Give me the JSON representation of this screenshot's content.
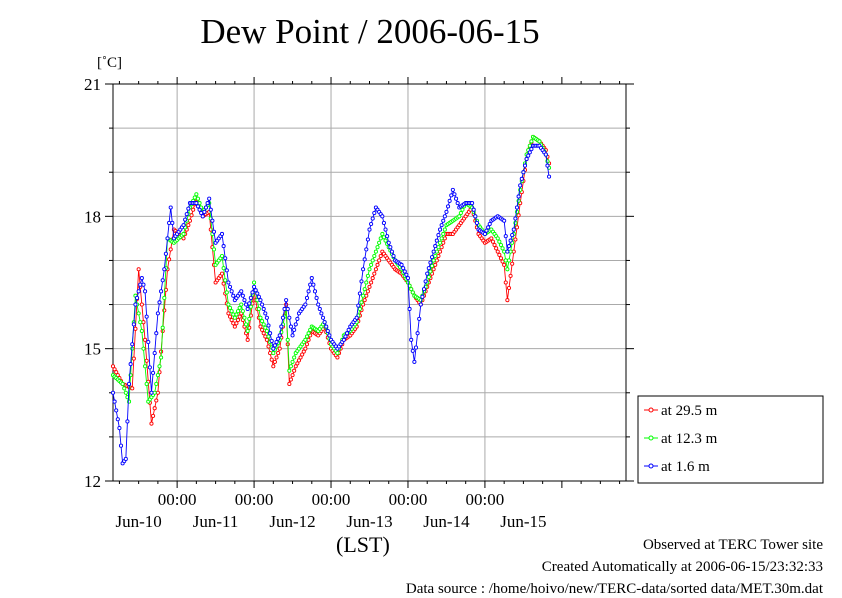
{
  "chart_data": {
    "type": "line",
    "title": "Dew Point / 2006-06-15",
    "ylabel": "[˚C]",
    "xlabel": "(LST)",
    "ylim": [
      12,
      21
    ],
    "yticks": [
      12,
      15,
      18,
      21
    ],
    "time_labels": [
      "00:00",
      "00:00",
      "00:00",
      "00:00",
      "00:00"
    ],
    "day_labels": [
      "Jun-10",
      "Jun-11",
      "Jun-12",
      "Jun-13",
      "Jun-14",
      "Jun-15"
    ],
    "x_range_hours_from_jun10": [
      -20,
      140
    ],
    "grid": true,
    "legend_position": "bottom-right",
    "series": [
      {
        "name": "at 29.5 m",
        "color": "#ff0000",
        "points": [
          [
            -20,
            14.6
          ],
          [
            -17,
            14.2
          ],
          [
            -14,
            14.1
          ],
          [
            -12,
            16.8
          ],
          [
            -10,
            15.2
          ],
          [
            -8,
            13.3
          ],
          [
            -6,
            14.0
          ],
          [
            -3,
            16.8
          ],
          [
            -1,
            17.7
          ],
          [
            2,
            17.5
          ],
          [
            4,
            17.9
          ],
          [
            6,
            18.4
          ],
          [
            8,
            18.0
          ],
          [
            10,
            18.1
          ],
          [
            12,
            16.5
          ],
          [
            14,
            16.7
          ],
          [
            16,
            15.8
          ],
          [
            18,
            15.5
          ],
          [
            20,
            15.8
          ],
          [
            22,
            15.2
          ],
          [
            24,
            16.3
          ],
          [
            26,
            15.5
          ],
          [
            28,
            15.2
          ],
          [
            30,
            14.6
          ],
          [
            32,
            15.0
          ],
          [
            34,
            16.0
          ],
          [
            35,
            14.2
          ],
          [
            37,
            14.6
          ],
          [
            40,
            15.0
          ],
          [
            42,
            15.4
          ],
          [
            44,
            15.3
          ],
          [
            46,
            15.5
          ],
          [
            48,
            15.0
          ],
          [
            50,
            14.8
          ],
          [
            52,
            15.2
          ],
          [
            54,
            15.3
          ],
          [
            56,
            15.5
          ],
          [
            58,
            16.0
          ],
          [
            60,
            16.4
          ],
          [
            62,
            16.8
          ],
          [
            64,
            17.2
          ],
          [
            66,
            17.0
          ],
          [
            68,
            16.8
          ],
          [
            70,
            16.7
          ],
          [
            72,
            16.5
          ],
          [
            74,
            16.2
          ],
          [
            76,
            16.0
          ],
          [
            78,
            16.4
          ],
          [
            80,
            16.8
          ],
          [
            82,
            17.2
          ],
          [
            84,
            17.6
          ],
          [
            86,
            17.6
          ],
          [
            88,
            17.8
          ],
          [
            90,
            18.0
          ],
          [
            92,
            18.2
          ],
          [
            94,
            17.6
          ],
          [
            96,
            17.4
          ],
          [
            98,
            17.5
          ],
          [
            100,
            17.2
          ],
          [
            102,
            16.9
          ],
          [
            103,
            16.1
          ],
          [
            105,
            17.2
          ],
          [
            107,
            18.3
          ],
          [
            109,
            19.3
          ],
          [
            111,
            19.8
          ],
          [
            113,
            19.7
          ],
          [
            115,
            19.5
          ],
          [
            116,
            19.2
          ]
        ]
      },
      {
        "name": "at 12.3 m",
        "color": "#00ff00",
        "points": [
          [
            -20,
            14.4
          ],
          [
            -17,
            14.2
          ],
          [
            -15,
            13.8
          ],
          [
            -13,
            16.2
          ],
          [
            -11,
            15.4
          ],
          [
            -9,
            13.8
          ],
          [
            -7,
            14.0
          ],
          [
            -5,
            14.8
          ],
          [
            -3,
            17.5
          ],
          [
            -1,
            17.4
          ],
          [
            2,
            17.6
          ],
          [
            4,
            18.2
          ],
          [
            6,
            18.5
          ],
          [
            8,
            18.1
          ],
          [
            10,
            18.3
          ],
          [
            12,
            16.9
          ],
          [
            14,
            17.1
          ],
          [
            16,
            16.0
          ],
          [
            18,
            15.7
          ],
          [
            20,
            16.0
          ],
          [
            22,
            15.4
          ],
          [
            24,
            16.5
          ],
          [
            26,
            15.7
          ],
          [
            28,
            15.4
          ],
          [
            30,
            14.9
          ],
          [
            32,
            15.2
          ],
          [
            34,
            15.9
          ],
          [
            35,
            14.5
          ],
          [
            37,
            14.9
          ],
          [
            40,
            15.2
          ],
          [
            42,
            15.5
          ],
          [
            44,
            15.4
          ],
          [
            46,
            15.6
          ],
          [
            48,
            15.1
          ],
          [
            50,
            14.9
          ],
          [
            52,
            15.3
          ],
          [
            54,
            15.4
          ],
          [
            56,
            15.6
          ],
          [
            58,
            16.2
          ],
          [
            60,
            16.8
          ],
          [
            62,
            17.2
          ],
          [
            64,
            17.6
          ],
          [
            66,
            17.3
          ],
          [
            68,
            17.0
          ],
          [
            70,
            16.8
          ],
          [
            72,
            16.5
          ],
          [
            74,
            16.2
          ],
          [
            76,
            16.1
          ],
          [
            78,
            16.5
          ],
          [
            80,
            17.0
          ],
          [
            82,
            17.4
          ],
          [
            84,
            17.8
          ],
          [
            86,
            17.9
          ],
          [
            88,
            18.0
          ],
          [
            90,
            18.3
          ],
          [
            92,
            18.2
          ],
          [
            94,
            17.8
          ],
          [
            96,
            17.6
          ],
          [
            98,
            17.7
          ],
          [
            100,
            17.5
          ],
          [
            102,
            17.2
          ],
          [
            103,
            16.8
          ],
          [
            105,
            17.6
          ],
          [
            107,
            18.6
          ],
          [
            109,
            19.4
          ],
          [
            111,
            19.8
          ],
          [
            113,
            19.7
          ],
          [
            115,
            19.4
          ],
          [
            116,
            19.1
          ]
        ]
      },
      {
        "name": "at 1.6 m",
        "color": "#0000ff",
        "points": [
          [
            -20,
            14.0
          ],
          [
            -18,
            13.2
          ],
          [
            -17,
            12.4
          ],
          [
            -16,
            12.5
          ],
          [
            -15,
            14.2
          ],
          [
            -13,
            16.0
          ],
          [
            -11,
            16.6
          ],
          [
            -10,
            16.3
          ],
          [
            -8,
            14.0
          ],
          [
            -6,
            15.8
          ],
          [
            -4,
            16.8
          ],
          [
            -3,
            17.5
          ],
          [
            -2,
            18.2
          ],
          [
            -1,
            17.5
          ],
          [
            2,
            17.8
          ],
          [
            4,
            18.3
          ],
          [
            6,
            18.3
          ],
          [
            8,
            18.0
          ],
          [
            10,
            18.4
          ],
          [
            12,
            17.4
          ],
          [
            14,
            17.6
          ],
          [
            16,
            16.5
          ],
          [
            18,
            16.1
          ],
          [
            20,
            16.3
          ],
          [
            22,
            15.9
          ],
          [
            24,
            16.4
          ],
          [
            26,
            16.1
          ],
          [
            28,
            15.7
          ],
          [
            30,
            15.0
          ],
          [
            32,
            15.3
          ],
          [
            34,
            16.1
          ],
          [
            36,
            15.3
          ],
          [
            38,
            15.8
          ],
          [
            40,
            16.0
          ],
          [
            42,
            16.6
          ],
          [
            44,
            16.0
          ],
          [
            46,
            15.6
          ],
          [
            48,
            15.2
          ],
          [
            50,
            15.0
          ],
          [
            52,
            15.2
          ],
          [
            54,
            15.5
          ],
          [
            56,
            15.7
          ],
          [
            58,
            16.8
          ],
          [
            60,
            17.7
          ],
          [
            62,
            18.2
          ],
          [
            64,
            18.0
          ],
          [
            66,
            17.4
          ],
          [
            68,
            17.0
          ],
          [
            70,
            16.9
          ],
          [
            72,
            16.6
          ],
          [
            73,
            15.2
          ],
          [
            74,
            14.7
          ],
          [
            76,
            16.0
          ],
          [
            78,
            16.7
          ],
          [
            80,
            17.2
          ],
          [
            82,
            17.7
          ],
          [
            84,
            18.1
          ],
          [
            86,
            18.6
          ],
          [
            88,
            18.2
          ],
          [
            90,
            18.3
          ],
          [
            92,
            18.3
          ],
          [
            94,
            17.7
          ],
          [
            96,
            17.6
          ],
          [
            98,
            17.9
          ],
          [
            100,
            18.0
          ],
          [
            102,
            17.9
          ],
          [
            103,
            17.2
          ],
          [
            105,
            17.7
          ],
          [
            107,
            18.7
          ],
          [
            109,
            19.3
          ],
          [
            111,
            19.6
          ],
          [
            113,
            19.6
          ],
          [
            115,
            19.4
          ],
          [
            116,
            18.9
          ]
        ]
      }
    ]
  },
  "footer": {
    "line1": "Observed at TERC Tower site",
    "line2": "Created Automatically at 2006-06-15/23:32:33",
    "line3": "Data source : /home/hoivo/new/TERC-data/sorted  data/MET.30m.dat"
  }
}
